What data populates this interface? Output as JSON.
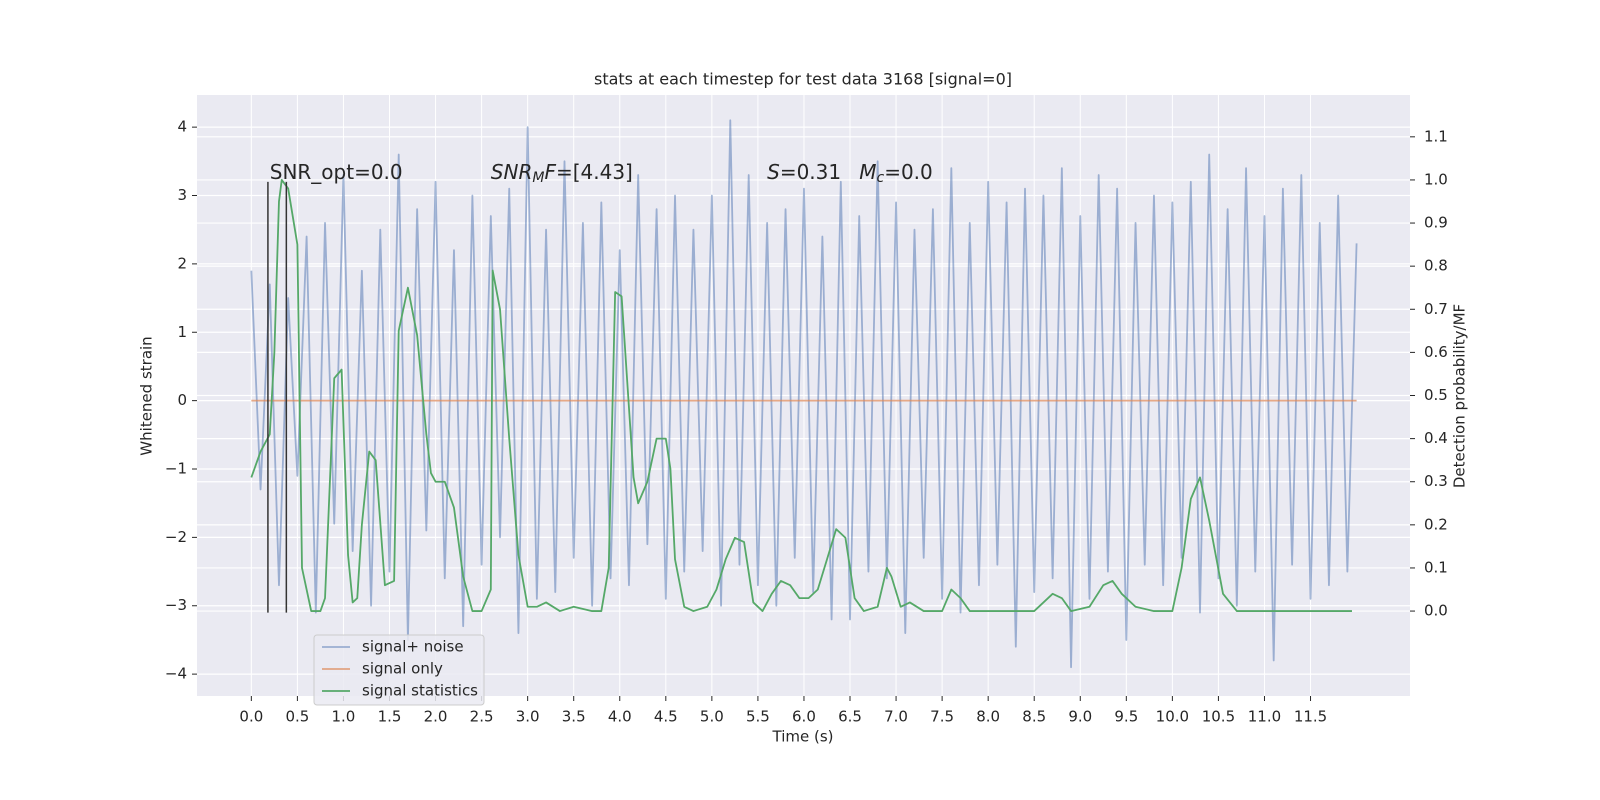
{
  "chart_data": {
    "type": "line",
    "title": "stats at each timestep for test data 3168 [signal=0]",
    "xlabel": "Time (s)",
    "ylabel": "Whitened strain",
    "y2label": "Detection probability/MF",
    "xlim": [
      -0.59,
      12.58
    ],
    "ylim": [
      -4.32,
      4.47
    ],
    "y2lim": [
      -0.197,
      1.197
    ],
    "xticks": [
      {
        "value": 0,
        "label": "0.0"
      },
      0.5,
      {
        "value": 1,
        "label": "1.0"
      },
      1.5,
      {
        "value": 2,
        "label": "2.0"
      },
      2.5,
      {
        "value": 3,
        "label": "3.0"
      },
      3.5,
      {
        "value": 4,
        "label": "4.0"
      },
      4.5,
      {
        "value": 5,
        "label": "5.0"
      },
      5.5,
      {
        "value": 6,
        "label": "6.0"
      },
      6.5,
      {
        "value": 7,
        "label": "7.0"
      },
      7.5,
      {
        "value": 8,
        "label": "8.0"
      },
      8.5,
      {
        "value": 9,
        "label": "9.0"
      },
      9.5,
      {
        "value": 10,
        "label": "10.0"
      },
      10.5,
      {
        "value": 11,
        "label": "11.0"
      },
      11.5
    ],
    "yticks": [
      {
        "value": -4,
        "label": "−4"
      },
      {
        "value": -3,
        "label": "−3"
      },
      {
        "value": -2,
        "label": "−2"
      },
      {
        "value": -1,
        "label": "−1"
      },
      0,
      1,
      2,
      3,
      4
    ],
    "y2ticks": [
      {
        "value": 0,
        "label": "0.0"
      },
      0.1,
      0.2,
      0.3,
      0.4,
      0.5,
      0.6,
      0.7,
      0.8,
      0.9,
      {
        "value": 1,
        "label": "1.0"
      },
      1.1
    ],
    "grid": true,
    "legend": "lower left",
    "series": [
      {
        "name": "signal+ noise",
        "color": "#4c72b0",
        "opacity": 0.5,
        "x": [
          0,
          0.1,
          0.2,
          0.3,
          0.4,
          0.5,
          0.6,
          0.7,
          0.8,
          0.9,
          1,
          1.1,
          1.2,
          1.3,
          1.4,
          1.5,
          1.6,
          1.7,
          1.8,
          1.9,
          2,
          2.1,
          2.2,
          2.3,
          2.4,
          2.5,
          2.6,
          2.7,
          2.8,
          2.9,
          3,
          3.1,
          3.2,
          3.3,
          3.4,
          3.5,
          3.6,
          3.7,
          3.8,
          3.9,
          4,
          4.1,
          4.2,
          4.3,
          4.4,
          4.5,
          4.6,
          4.7,
          4.8,
          4.9,
          5,
          5.1,
          5.2,
          5.3,
          5.4,
          5.5,
          5.6,
          5.7,
          5.8,
          5.9,
          6,
          6.1,
          6.2,
          6.3,
          6.4,
          6.5,
          6.6,
          6.7,
          6.8,
          6.9,
          7,
          7.1,
          7.2,
          7.3,
          7.4,
          7.5,
          7.6,
          7.7,
          7.8,
          7.9,
          8,
          8.1,
          8.2,
          8.3,
          8.4,
          8.5,
          8.6,
          8.7,
          8.8,
          8.9,
          9,
          9.1,
          9.2,
          9.3,
          9.4,
          9.5,
          9.6,
          9.7,
          9.8,
          9.9,
          10,
          10.1,
          10.2,
          10.3,
          10.4,
          10.5,
          10.6,
          10.7,
          10.8,
          10.9,
          11,
          11.1,
          11.2,
          11.3,
          11.4,
          11.5,
          11.6,
          11.7,
          11.8,
          11.9,
          12
        ],
        "values": [
          1.9,
          -1.3,
          1.7,
          -2.7,
          1.5,
          -1.1,
          2.4,
          -3.1,
          2.6,
          -1.8,
          3.3,
          -2.2,
          1.9,
          -3.0,
          2.5,
          -2.5,
          3.6,
          -3.5,
          2.8,
          -1.9,
          3.2,
          -2.6,
          2.2,
          -3.3,
          3.0,
          -2.4,
          2.7,
          -2.0,
          3.1,
          -3.4,
          4.0,
          -2.9,
          2.5,
          -2.8,
          3.5,
          -2.3,
          2.6,
          -3.0,
          2.9,
          -2.6,
          2.2,
          -2.7,
          3.3,
          -2.1,
          2.8,
          -2.9,
          3.0,
          -2.5,
          2.5,
          -2.2,
          3.0,
          -3.0,
          4.1,
          -2.4,
          3.3,
          -2.7,
          2.6,
          -3.0,
          2.8,
          -2.3,
          3.1,
          -2.8,
          2.4,
          -3.2,
          3.2,
          -3.2,
          2.7,
          -2.5,
          3.5,
          -2.6,
          2.9,
          -3.4,
          2.5,
          -2.3,
          2.8,
          -2.9,
          3.4,
          -3.1,
          2.6,
          -2.7,
          3.2,
          -2.4,
          2.9,
          -3.6,
          3.1,
          -2.8,
          3.0,
          -2.6,
          3.4,
          -3.9,
          2.7,
          -2.9,
          3.3,
          -2.5,
          3.1,
          -3.5,
          2.6,
          -2.4,
          3.0,
          -2.7,
          2.9,
          -2.3,
          3.2,
          -3.1,
          3.6,
          -2.6,
          2.8,
          -3.0,
          3.4,
          -2.5,
          2.7,
          -3.8,
          3.1,
          -2.4,
          3.3,
          -2.9,
          2.6,
          -2.7,
          3.0,
          -2.5,
          2.3
        ]
      },
      {
        "name": "signal only",
        "color": "#dd8452",
        "opacity": 0.7,
        "x": [
          0,
          12
        ],
        "values": [
          0,
          0
        ]
      },
      {
        "name": "signal statistics",
        "color": "#55a868",
        "opacity": 1,
        "axis": "y2",
        "x": [
          0,
          0.1,
          0.2,
          0.25,
          0.3,
          0.33,
          0.4,
          0.5,
          0.55,
          0.65,
          0.75,
          0.8,
          0.9,
          0.98,
          1.05,
          1.1,
          1.15,
          1.2,
          1.28,
          1.35,
          1.45,
          1.55,
          1.6,
          1.7,
          1.8,
          1.9,
          1.95,
          2.0,
          2.1,
          2.2,
          2.3,
          2.4,
          2.5,
          2.6,
          2.62,
          2.7,
          2.8,
          2.9,
          3.0,
          3.1,
          3.2,
          3.35,
          3.5,
          3.7,
          3.8,
          3.88,
          3.95,
          4.02,
          4.15,
          4.2,
          4.3,
          4.4,
          4.5,
          4.55,
          4.6,
          4.7,
          4.8,
          4.95,
          5.05,
          5.15,
          5.25,
          5.35,
          5.45,
          5.55,
          5.65,
          5.75,
          5.85,
          5.95,
          6.05,
          6.15,
          6.25,
          6.35,
          6.45,
          6.55,
          6.65,
          6.8,
          6.9,
          6.95,
          7.05,
          7.15,
          7.3,
          7.5,
          7.6,
          7.7,
          7.8,
          8.0,
          8.2,
          8.5,
          8.7,
          8.8,
          8.9,
          9.1,
          9.25,
          9.35,
          9.45,
          9.6,
          9.8,
          10.0,
          10.1,
          10.2,
          10.3,
          10.4,
          10.55,
          10.7,
          11.0,
          11.5,
          11.95
        ],
        "values": [
          0.31,
          0.37,
          0.41,
          0.6,
          0.95,
          1.0,
          0.98,
          0.85,
          0.1,
          0,
          0,
          0.03,
          0.54,
          0.56,
          0.13,
          0.02,
          0.03,
          0.2,
          0.37,
          0.35,
          0.06,
          0.07,
          0.65,
          0.75,
          0.64,
          0.41,
          0.32,
          0.3,
          0.3,
          0.24,
          0.08,
          0,
          0,
          0.05,
          0.79,
          0.7,
          0.4,
          0.13,
          0.01,
          0.01,
          0.02,
          0,
          0.01,
          0,
          0,
          0.1,
          0.74,
          0.73,
          0.31,
          0.25,
          0.3,
          0.4,
          0.4,
          0.33,
          0.12,
          0.01,
          0,
          0.01,
          0.05,
          0.12,
          0.17,
          0.16,
          0.02,
          0,
          0.04,
          0.07,
          0.06,
          0.03,
          0.03,
          0.05,
          0.12,
          0.19,
          0.17,
          0.03,
          0,
          0.01,
          0.1,
          0.08,
          0.01,
          0.02,
          0,
          0,
          0.05,
          0.03,
          0,
          0,
          0,
          0,
          0.04,
          0.03,
          0,
          0.01,
          0.06,
          0.07,
          0.04,
          0.01,
          0,
          0,
          0.1,
          0.26,
          0.31,
          0.21,
          0.04,
          0,
          0,
          0,
          0
        ]
      }
    ],
    "vlines": {
      "color": "#333333",
      "x": [
        0.18,
        0.38
      ],
      "ymin": -3.1,
      "ymax": 3.2
    },
    "annotations": [
      {
        "x": 0.2,
        "y": 3.33,
        "parts": [
          {
            "text": "SNR_opt=0.0"
          }
        ]
      },
      {
        "x": 2.6,
        "y": 3.33,
        "parts": [
          {
            "text": "SNR",
            "italic": true
          },
          {
            "text": "M",
            "italic": true,
            "sub": true
          },
          {
            "text": "F",
            "italic": true
          },
          {
            "text": "=[4.43]"
          }
        ]
      },
      {
        "x": 5.6,
        "y": 3.33,
        "parts": [
          {
            "text": "S",
            "italic": true
          },
          {
            "text": "=0.31"
          }
        ]
      },
      {
        "x": 6.6,
        "y": 3.33,
        "parts": [
          {
            "text": "M",
            "italic": true
          },
          {
            "text": "c",
            "italic": true,
            "sub": true
          },
          {
            "text": "=0.0"
          }
        ]
      }
    ]
  }
}
